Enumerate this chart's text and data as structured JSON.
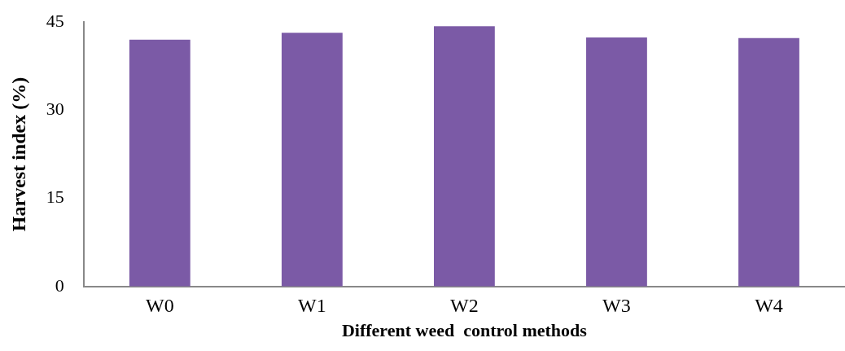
{
  "chart_data": {
    "type": "bar",
    "xlabel": "Different weed  control methods",
    "ylabel": "Harvest index (%)",
    "categories": [
      "W0",
      "W1",
      "W2",
      "W3",
      "W4"
    ],
    "values": [
      42.0,
      43.2,
      44.3,
      42.4,
      42.3
    ],
    "color": "#7b5aa6",
    "ylim": [
      0,
      45
    ],
    "yticks": [
      0,
      15,
      30,
      45
    ],
    "grid": false,
    "legend": false
  }
}
